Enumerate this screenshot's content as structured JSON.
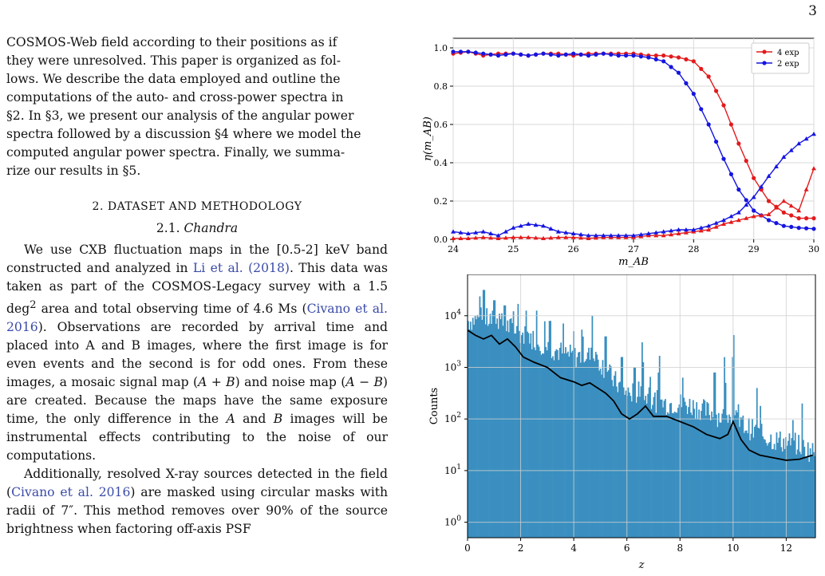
{
  "page_number": "3",
  "intro": {
    "lines": [
      "COSMOS-Web field according to their positions as if",
      "they were unresolved. This paper is organized as fol-",
      "lows. We describe the data employed and outline the",
      "computations of the auto- and cross-power spectra in",
      "§2. In §3, we present our analysis of the angular power",
      "spectra followed by a discussion §4 where we model the",
      "computed angular power spectra. Finally, we summa-",
      "rize our results in §5."
    ]
  },
  "section": {
    "title": "2. DATASET AND METHODOLOGY"
  },
  "subsection": {
    "title": "2.1. Chandra"
  },
  "p1": {
    "a": "We use CXB fluctuation maps in the [0.5-2] keV band constructed and analyzed in ",
    "cite1": "Li et al. (2018)",
    "b": ". This data was taken as part of the COSMOS-Legacy survey with a 1.5 deg",
    "sup": "2",
    "c": " area and total observing time of 4.6 Ms (",
    "cite2": "Civano et al. 2016",
    "d": "). Observations are recorded by arrival time and placed into A and B images, where the first image is for even events and the second is for odd ones. From these images, a mosaic signal map (",
    "m1": "A + B",
    "e": ") and noise map (",
    "m2": "A − B",
    "f": ") are created. Because the maps have the same exposure time, the only difference in the ",
    "m3": "A",
    "g": " and ",
    "m4": "B",
    "h": " images will be instrumental effects contributing to the noise of our computations."
  },
  "p2": {
    "a": "Additionally, resolved X-ray sources detected in the field (",
    "cite": "Civano et al. 2016",
    "b": ") are masked using circular masks with radii of 7″. This method removes over 90% of the source brightness when factoring off-axis PSF"
  },
  "colors": {
    "red": "#e31a1c",
    "blue": "#1515e0",
    "hist": "#3a8fc0",
    "link": "#3b4ba8"
  },
  "chart_data": [
    {
      "type": "line",
      "title": "",
      "xlabel": "m_AB",
      "ylabel": "η(m_AB)",
      "xlim": [
        24,
        30
      ],
      "ylim": [
        0,
        1.05
      ],
      "xticks": [
        "24",
        "25",
        "26",
        "27",
        "28",
        "29",
        "30"
      ],
      "yticks": [
        "0.0",
        "0.2",
        "0.4",
        "0.6",
        "0.8",
        "1.0"
      ],
      "grid": true,
      "legend": "top-right",
      "series": [
        {
          "name": "4 exp",
          "marker": "circle",
          "color": "#e31a1c",
          "x": [
            24,
            24.25,
            24.5,
            24.75,
            25,
            25.25,
            25.5,
            25.75,
            26,
            26.25,
            26.5,
            26.75,
            27,
            27.25,
            27.5,
            27.75,
            28,
            28.25,
            28.5,
            28.75,
            29,
            29.25,
            29.5,
            29.75,
            30
          ],
          "y": [
            0.97,
            0.98,
            0.96,
            0.97,
            0.97,
            0.96,
            0.97,
            0.97,
            0.96,
            0.97,
            0.97,
            0.97,
            0.97,
            0.96,
            0.96,
            0.95,
            0.93,
            0.85,
            0.7,
            0.5,
            0.32,
            0.2,
            0.14,
            0.11,
            0.11
          ]
        },
        {
          "name": "2 exp",
          "marker": "circle",
          "color": "#1515e0",
          "x": [
            24,
            24.25,
            24.5,
            24.75,
            25,
            25.25,
            25.5,
            25.75,
            26,
            26.25,
            26.5,
            26.75,
            27,
            27.25,
            27.5,
            27.75,
            28,
            28.25,
            28.5,
            28.75,
            29,
            29.25,
            29.5,
            29.75,
            30
          ],
          "y": [
            0.98,
            0.98,
            0.97,
            0.96,
            0.97,
            0.96,
            0.97,
            0.96,
            0.97,
            0.96,
            0.97,
            0.96,
            0.96,
            0.95,
            0.93,
            0.87,
            0.76,
            0.6,
            0.42,
            0.26,
            0.15,
            0.1,
            0.07,
            0.06,
            0.055
          ]
        },
        {
          "name": "",
          "marker": "triangle",
          "color": "#e31a1c",
          "x": [
            24,
            24.25,
            24.5,
            24.75,
            25,
            25.25,
            25.5,
            25.75,
            26,
            26.25,
            26.5,
            26.75,
            27,
            27.25,
            27.5,
            27.75,
            28,
            28.25,
            28.5,
            28.75,
            29,
            29.25,
            29.5,
            29.75,
            30
          ],
          "y": [
            0.005,
            0.005,
            0.01,
            0.005,
            0.01,
            0.01,
            0.005,
            0.01,
            0.01,
            0.005,
            0.01,
            0.01,
            0.01,
            0.02,
            0.02,
            0.03,
            0.04,
            0.05,
            0.08,
            0.1,
            0.12,
            0.13,
            0.2,
            0.15,
            0.37
          ]
        },
        {
          "name": "",
          "marker": "triangle",
          "color": "#1515e0",
          "x": [
            24,
            24.25,
            24.5,
            24.75,
            25,
            25.25,
            25.5,
            25.75,
            26,
            26.25,
            26.5,
            26.75,
            27,
            27.25,
            27.5,
            27.75,
            28,
            28.25,
            28.5,
            28.75,
            29,
            29.25,
            29.5,
            29.75,
            30
          ],
          "y": [
            0.04,
            0.03,
            0.04,
            0.02,
            0.06,
            0.08,
            0.07,
            0.04,
            0.03,
            0.02,
            0.02,
            0.02,
            0.02,
            0.03,
            0.04,
            0.05,
            0.05,
            0.07,
            0.1,
            0.14,
            0.22,
            0.33,
            0.43,
            0.5,
            0.55
          ]
        }
      ]
    },
    {
      "type": "bar",
      "title": "",
      "xlabel": "z",
      "ylabel": "Counts",
      "xlim": [
        0,
        13.1
      ],
      "ylim_log10": [
        -0.3,
        4.8
      ],
      "yscale": "log",
      "xticks": [
        "0",
        "2",
        "4",
        "6",
        "8",
        "10",
        "12"
      ],
      "yticks": [
        "10^0",
        "10^1",
        "10^2",
        "10^3",
        "10^4"
      ],
      "grid": true,
      "histogram_envelope_log10": {
        "z": [
          0,
          0.5,
          1,
          1.5,
          2,
          2.5,
          3,
          3.5,
          4,
          4.5,
          5,
          5.5,
          6,
          6.5,
          7,
          7.5,
          8,
          8.5,
          9,
          9.5,
          10,
          10.5,
          11,
          11.5,
          12,
          12.5,
          13
        ],
        "log_counts": [
          3.9,
          3.95,
          3.9,
          3.8,
          3.65,
          3.55,
          3.4,
          3.3,
          3.2,
          3.25,
          3.1,
          2.75,
          2.5,
          2.5,
          2.35,
          2.3,
          2.3,
          2.25,
          2.15,
          2.05,
          2.0,
          1.85,
          1.7,
          1.6,
          1.55,
          1.5,
          1.35
        ]
      },
      "histogram_spikes_log10": {
        "z": [
          0.6,
          1.0,
          1.4,
          2.2,
          2.6,
          3.1,
          3.6,
          4.0,
          4.7,
          5.2,
          5.8,
          6.3,
          6.6,
          7.2,
          8.1,
          9.3,
          9.7,
          10.0,
          10.9,
          12.6
        ],
        "log_counts": [
          4.5,
          4.3,
          4.2,
          4.1,
          4.1,
          3.9,
          3.85,
          3.7,
          4.0,
          3.6,
          3.2,
          3.0,
          3.1,
          2.9,
          2.8,
          2.9,
          2.7,
          3.2,
          2.6,
          2.3
        ]
      },
      "smoothed_line_log10": {
        "z": [
          0,
          0.3,
          0.6,
          0.9,
          1.2,
          1.5,
          1.8,
          2.1,
          2.5,
          3,
          3.5,
          4,
          4.3,
          4.6,
          4.9,
          5.2,
          5.5,
          5.8,
          6.1,
          6.4,
          6.7,
          7.0,
          7.5,
          8,
          8.5,
          9,
          9.5,
          9.8,
          10.0,
          10.3,
          10.6,
          11,
          11.5,
          12,
          12.5,
          13
        ],
        "log_counts": [
          3.72,
          3.62,
          3.55,
          3.62,
          3.45,
          3.55,
          3.4,
          3.2,
          3.1,
          3.0,
          2.8,
          2.72,
          2.65,
          2.7,
          2.6,
          2.5,
          2.35,
          2.1,
          2.0,
          2.1,
          2.25,
          2.05,
          2.05,
          1.95,
          1.85,
          1.7,
          1.62,
          1.7,
          1.95,
          1.6,
          1.4,
          1.3,
          1.25,
          1.2,
          1.22,
          1.3
        ]
      }
    }
  ]
}
